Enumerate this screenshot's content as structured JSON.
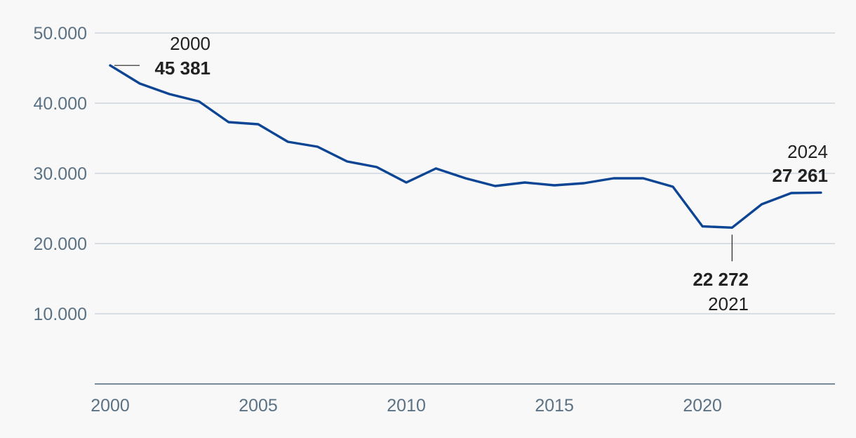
{
  "chart_data": {
    "type": "line",
    "title": "",
    "xlabel": "",
    "ylabel": "",
    "x": [
      2000,
      2001,
      2002,
      2003,
      2004,
      2005,
      2006,
      2007,
      2008,
      2009,
      2010,
      2011,
      2012,
      2013,
      2014,
      2015,
      2016,
      2017,
      2018,
      2019,
      2020,
      2021,
      2022,
      2023,
      2024
    ],
    "series": [
      {
        "values": [
          45381,
          42800,
          41300,
          40250,
          37300,
          37000,
          34500,
          33800,
          31700,
          30900,
          28700,
          30700,
          29300,
          28200,
          28700,
          28300,
          28600,
          29300,
          29300,
          28100,
          22450,
          22272,
          25600,
          27200,
          27261
        ]
      }
    ],
    "xlim": [
      2000,
      2024
    ],
    "ylim": [
      0,
      50000
    ],
    "yticks": [
      10000,
      20000,
      30000,
      40000,
      50000
    ],
    "ytick_labels": [
      "10.000",
      "20.000",
      "30.000",
      "40.000",
      "50.000"
    ],
    "xticks": [
      2000,
      2005,
      2010,
      2015,
      2020
    ],
    "xtick_labels": [
      "2000",
      "2005",
      "2010",
      "2015",
      "2020"
    ],
    "grid": true,
    "legend": "none",
    "line_color": "#0d4595",
    "annotations": [
      {
        "year": 2000,
        "year_label": "2000",
        "value_label": "45 381"
      },
      {
        "year": 2021,
        "year_label": "2021",
        "value_label": "22 272"
      },
      {
        "year": 2024,
        "year_label": "2024",
        "value_label": "27 261"
      }
    ]
  }
}
